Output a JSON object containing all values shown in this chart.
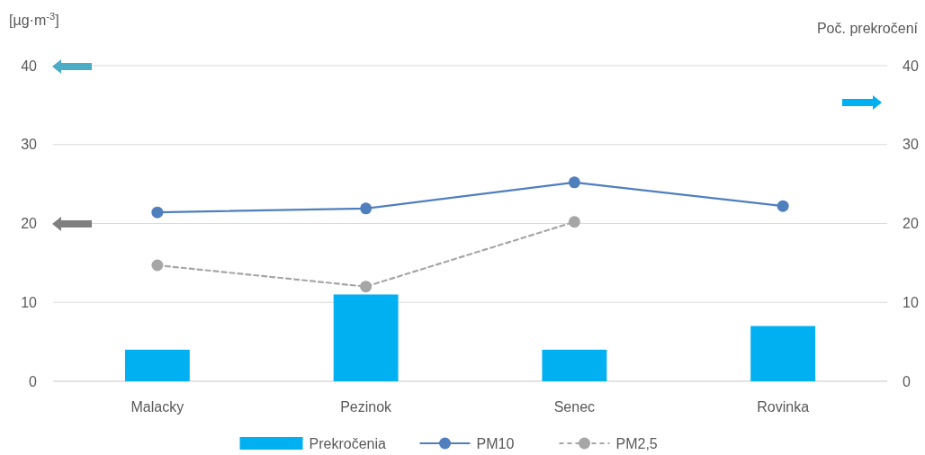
{
  "chart_data": {
    "type": "bar",
    "ylabel": "[µg·m$^{-3}$]",
    "y2label": "Poč. prekročení",
    "categories": [
      "Malacky",
      "Pezinok",
      "Senec",
      "Rovinka"
    ],
    "series": [
      {
        "name": "Prekročenia",
        "type": "bar",
        "axis": "y2",
        "color": "#00b0f0",
        "values": [
          4,
          11,
          4,
          7
        ]
      },
      {
        "name": "PM10",
        "type": "line",
        "color": "#4f7fbd",
        "marker": "circle",
        "line_style": "solid",
        "values": [
          21.4,
          21.9,
          25.2,
          22.2
        ]
      },
      {
        "name": "PM2,5",
        "type": "line",
        "color": "#a6a6a6",
        "marker": "circle",
        "line_style": "dashed",
        "values": [
          14.7,
          12.0,
          20.2,
          null
        ]
      }
    ],
    "ylim": [
      0,
      40
    ],
    "yticks": [
      0,
      10,
      20,
      30,
      40
    ],
    "y2lim": [
      0,
      40
    ],
    "y2ticks": [
      0,
      10,
      20,
      30,
      40
    ],
    "grid": "y",
    "legend": "bottom"
  }
}
